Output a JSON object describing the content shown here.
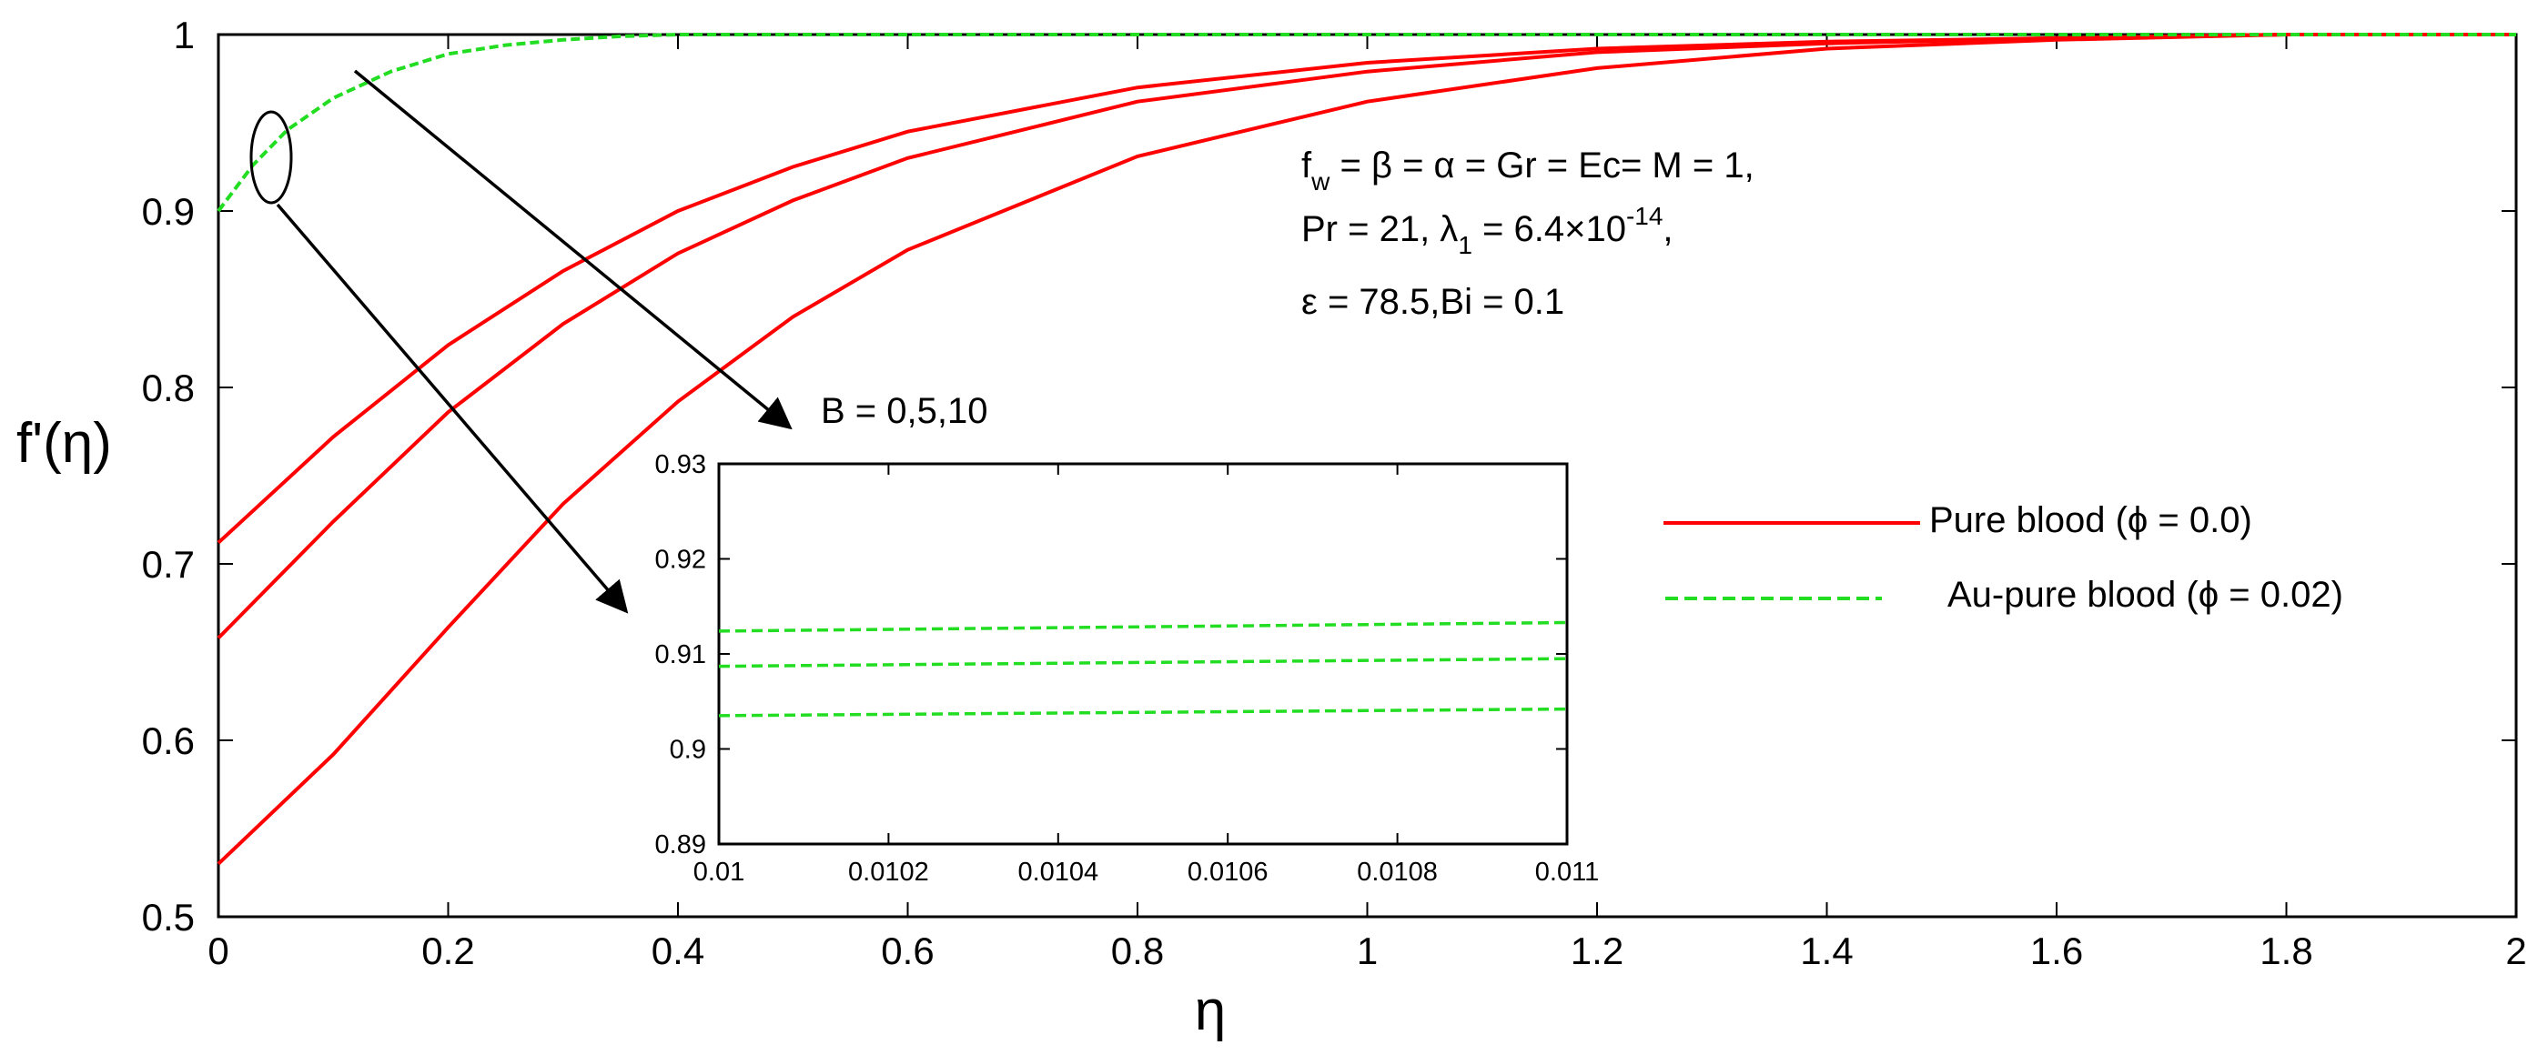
{
  "chart_data": {
    "type": "line",
    "main": {
      "xlabel": "η",
      "ylabel": "f'(η)",
      "xlim": [
        0,
        2
      ],
      "ylim": [
        0.5,
        1
      ],
      "x_ticks": [
        "0",
        "0.2",
        "0.4",
        "0.6",
        "0.8",
        "1",
        "1.2",
        "1.4",
        "1.6",
        "1.8",
        "2"
      ],
      "y_ticks": [
        "0.5",
        "0.6",
        "0.7",
        "0.8",
        "0.9",
        "1"
      ],
      "grid": false,
      "series": [
        {
          "name": "Pure blood (ϕ = 0.0), B = 0",
          "style": "solid",
          "color": "#ff0000",
          "x": [
            0,
            0.1,
            0.2,
            0.3,
            0.4,
            0.5,
            0.6,
            0.8,
            1.0,
            1.2,
            1.4,
            1.6,
            1.8,
            2.0
          ],
          "y": [
            0.712,
            0.772,
            0.824,
            0.866,
            0.9,
            0.925,
            0.945,
            0.97,
            0.984,
            0.992,
            0.996,
            0.998,
            1.0,
            1.0
          ]
        },
        {
          "name": "Pure blood (ϕ = 0.0), B = 5",
          "style": "solid",
          "color": "#ff0000",
          "x": [
            0,
            0.1,
            0.2,
            0.3,
            0.4,
            0.5,
            0.6,
            0.8,
            1.0,
            1.2,
            1.4,
            1.6,
            1.8,
            2.0
          ],
          "y": [
            0.658,
            0.724,
            0.786,
            0.836,
            0.876,
            0.906,
            0.93,
            0.962,
            0.979,
            0.99,
            0.995,
            0.998,
            1.0,
            1.0
          ]
        },
        {
          "name": "Pure blood (ϕ = 0.0), B = 10",
          "style": "solid",
          "color": "#ff0000",
          "x": [
            0,
            0.1,
            0.2,
            0.3,
            0.4,
            0.5,
            0.6,
            0.8,
            1.0,
            1.2,
            1.4,
            1.6,
            1.8,
            2.0
          ],
          "y": [
            0.53,
            0.592,
            0.664,
            0.734,
            0.792,
            0.84,
            0.878,
            0.931,
            0.962,
            0.981,
            0.992,
            0.997,
            1.0,
            1.0
          ]
        },
        {
          "name": "Au-pure blood (ϕ = 0.02)",
          "style": "dashed",
          "color": "#22dd22",
          "x": [
            0,
            0.03,
            0.06,
            0.1,
            0.15,
            0.2,
            0.25,
            0.3,
            0.35,
            0.4,
            0.45,
            2.0
          ],
          "y": [
            0.9,
            0.926,
            0.946,
            0.964,
            0.979,
            0.989,
            0.994,
            0.997,
            0.999,
            1.0,
            1.0,
            1.0
          ]
        }
      ]
    },
    "inset": {
      "xlim": [
        0.01,
        0.011
      ],
      "ylim": [
        0.89,
        0.93
      ],
      "x_ticks": [
        "0.01",
        "0.0102",
        "0.0104",
        "0.0106",
        "0.0108",
        "0.011"
      ],
      "y_ticks": [
        "0.89",
        "0.9",
        "0.91",
        "0.92",
        "0.93"
      ],
      "series": [
        {
          "name": "B = 0",
          "style": "dashed",
          "color": "#22dd22",
          "x": [
            0.01,
            0.011
          ],
          "y": [
            0.9124,
            0.9133
          ]
        },
        {
          "name": "B = 5",
          "style": "dashed",
          "color": "#22dd22",
          "x": [
            0.01,
            0.011
          ],
          "y": [
            0.9087,
            0.9095
          ]
        },
        {
          "name": "B = 10",
          "style": "dashed",
          "color": "#22dd22",
          "x": [
            0.01,
            0.011
          ],
          "y": [
            0.9035,
            0.9042
          ]
        }
      ]
    },
    "annotations": {
      "param_line1_a": "f",
      "param_line1_sub": "w",
      "param_line1_b": " = β = α = Gr = Ec= M = 1,",
      "param_line2_a": "Pr = 21, λ",
      "param_line2_sub": "1",
      "param_line2_b": " = 6.4×10",
      "param_line2_sup": "-14",
      "param_line2_c": ",",
      "param_line3": "ε = 78.5,Bi = 0.1",
      "b_label": "B = 0,5,10"
    },
    "legend": {
      "position": "right",
      "entries": [
        {
          "label": "Pure blood (ϕ = 0.0)",
          "style": "solid",
          "color": "#ff0000"
        },
        {
          "label": "Au-pure blood (ϕ = 0.02)",
          "style": "dashed",
          "color": "#22dd22"
        }
      ]
    }
  }
}
